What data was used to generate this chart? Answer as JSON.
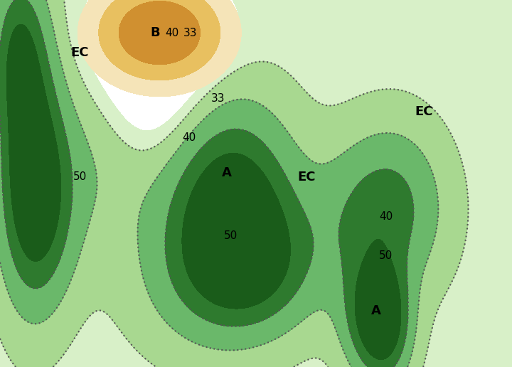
{
  "figsize": [
    7.2,
    5.16
  ],
  "dpi": 100,
  "background_color": "#ffffff",
  "extent": [
    -126,
    -65,
    23,
    51
  ],
  "green_colors": [
    "#d8f0c8",
    "#a8d890",
    "#6ab86a",
    "#2e7a2e",
    "#1a5c1a"
  ],
  "orange_colors": [
    "#f5dfa0",
    "#e8b860",
    "#d09030"
  ],
  "contour_dot_color": "#555555",
  "label_fontsize": 13,
  "number_fontsize": 11,
  "labels": [
    {
      "text": "EC",
      "lon": -116.5,
      "lat": 47.0,
      "bold": true
    },
    {
      "text": "EC",
      "lon": -75.5,
      "lat": 42.5,
      "bold": true
    },
    {
      "text": "EC",
      "lon": -89.5,
      "lat": 37.5,
      "bold": true
    },
    {
      "text": "B",
      "lon": -107.5,
      "lat": 48.5,
      "bold": true
    },
    {
      "text": "40",
      "lon": -105.5,
      "lat": 48.5,
      "bold": false
    },
    {
      "text": "33",
      "lon": -103.3,
      "lat": 48.5,
      "bold": false
    },
    {
      "text": "A",
      "lon": -99.0,
      "lat": 37.8,
      "bold": true
    },
    {
      "text": "A",
      "lon": -81.2,
      "lat": 27.3,
      "bold": true
    },
    {
      "text": "50",
      "lon": -116.5,
      "lat": 37.5,
      "bold": false
    },
    {
      "text": "40",
      "lon": -103.5,
      "lat": 40.5,
      "bold": false
    },
    {
      "text": "33",
      "lon": -100.0,
      "lat": 43.5,
      "bold": false
    },
    {
      "text": "50",
      "lon": -98.5,
      "lat": 33.0,
      "bold": false
    },
    {
      "text": "40",
      "lon": -80.0,
      "lat": 34.5,
      "bold": false
    },
    {
      "text": "50",
      "lon": -80.0,
      "lat": 31.5,
      "bold": false
    }
  ]
}
